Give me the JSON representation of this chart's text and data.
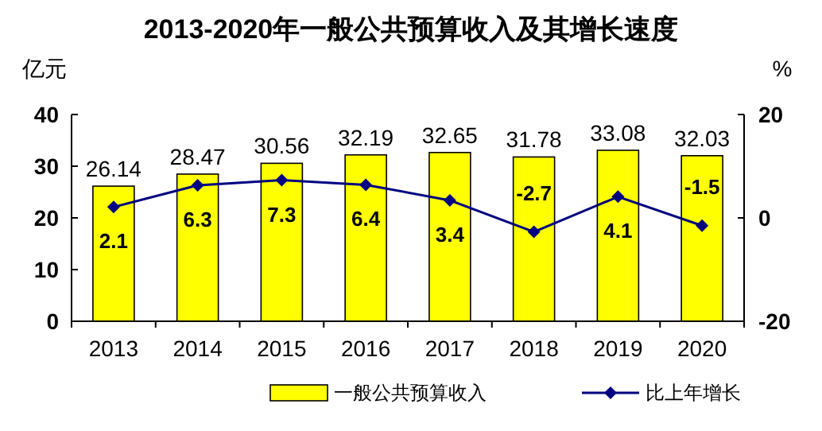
{
  "chart_data": {
    "type": "bar",
    "title": "2013-2020年一般公共预算收入及其增长速度",
    "ylabel": "亿元",
    "y2label": "%",
    "categories": [
      "2013",
      "2014",
      "2015",
      "2016",
      "2017",
      "2018",
      "2019",
      "2020"
    ],
    "series": [
      {
        "name": "一般公共预算收入",
        "color": "#ffff00",
        "values": [
          26.14,
          28.47,
          30.56,
          32.19,
          32.65,
          31.78,
          33.08,
          32.03
        ]
      },
      {
        "name": "比上年增长",
        "type": "line",
        "axis": "y2",
        "color": "#000080",
        "marker": "diamond",
        "values": [
          2.1,
          6.3,
          7.3,
          6.4,
          3.4,
          -2.7,
          4.1,
          -1.5
        ]
      }
    ],
    "ylim": [
      0,
      40
    ],
    "yticks": [
      0,
      10,
      20,
      30,
      40
    ],
    "y2lim": [
      -20,
      20
    ],
    "y2ticks": [
      -20,
      0,
      20
    ],
    "data_labels": true,
    "grid": false,
    "legend": "bottom"
  }
}
